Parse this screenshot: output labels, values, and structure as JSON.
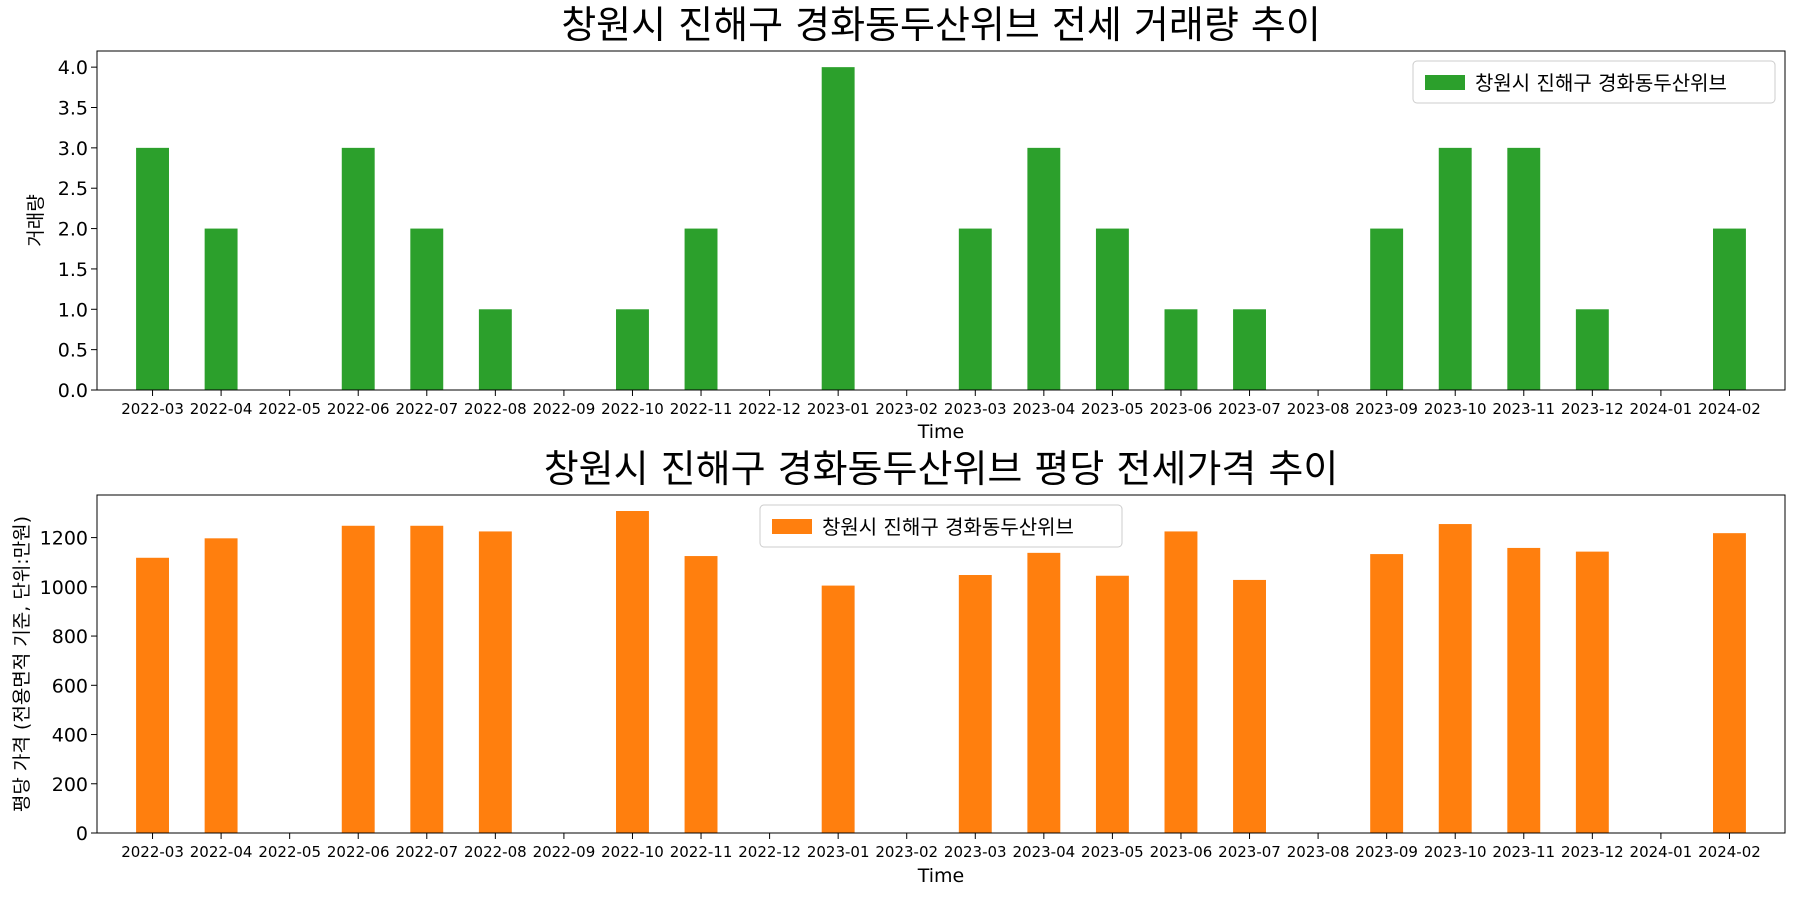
{
  "chart_data": [
    {
      "type": "bar",
      "title": "창원시 진해구 경화동두산위브 전세 거래량 추이",
      "xlabel": "Time",
      "ylabel": "거래량",
      "categories": [
        "2022-03",
        "2022-04",
        "2022-05",
        "2022-06",
        "2022-07",
        "2022-08",
        "2022-09",
        "2022-10",
        "2022-11",
        "2022-12",
        "2023-01",
        "2023-02",
        "2023-03",
        "2023-04",
        "2023-05",
        "2023-06",
        "2023-07",
        "2023-08",
        "2023-09",
        "2023-10",
        "2023-11",
        "2023-12",
        "2024-01",
        "2024-02"
      ],
      "series": [
        {
          "name": "창원시 진해구 경화동두산위브",
          "color": "#2ca02c",
          "values": [
            3,
            2,
            0,
            3,
            2,
            1,
            0,
            1,
            2,
            0,
            4,
            0,
            2,
            3,
            2,
            1,
            1,
            0,
            2,
            3,
            3,
            1,
            0,
            2
          ]
        }
      ],
      "ylim": [
        0,
        4.2
      ],
      "yticks": [
        0.0,
        0.5,
        1.0,
        1.5,
        2.0,
        2.5,
        3.0,
        3.5,
        4.0
      ],
      "ytick_labels": [
        "0.0",
        "0.5",
        "1.0",
        "1.5",
        "2.0",
        "2.5",
        "3.0",
        "3.5",
        "4.0"
      ],
      "grid": false,
      "legend": "top-right"
    },
    {
      "type": "bar",
      "title": "창원시 진해구 경화동두산위브 평당 전세가격 추이",
      "xlabel": "Time",
      "ylabel": "평당 가격 (전용면적 기준, 단위:만원)",
      "categories": [
        "2022-03",
        "2022-04",
        "2022-05",
        "2022-06",
        "2022-07",
        "2022-08",
        "2022-09",
        "2022-10",
        "2022-11",
        "2022-12",
        "2023-01",
        "2023-02",
        "2023-03",
        "2023-04",
        "2023-05",
        "2023-06",
        "2023-07",
        "2023-08",
        "2023-09",
        "2023-10",
        "2023-11",
        "2023-12",
        "2024-01",
        "2024-02"
      ],
      "series": [
        {
          "name": "창원시 진해구 경화동두산위브",
          "color": "#ff7f0e",
          "values": [
            1118,
            1197,
            0,
            1248,
            1248,
            1225,
            0,
            1308,
            1125,
            0,
            1005,
            0,
            1048,
            1138,
            1045,
            1225,
            1028,
            0,
            1133,
            1255,
            1158,
            1143,
            0,
            1218
          ]
        }
      ],
      "ylim": [
        0,
        1373
      ],
      "yticks": [
        0,
        200,
        400,
        600,
        800,
        1000,
        1200
      ],
      "ytick_labels": [
        "0",
        "200",
        "400",
        "600",
        "800",
        "1000",
        "1200"
      ],
      "grid": false,
      "legend": "top-center"
    }
  ]
}
